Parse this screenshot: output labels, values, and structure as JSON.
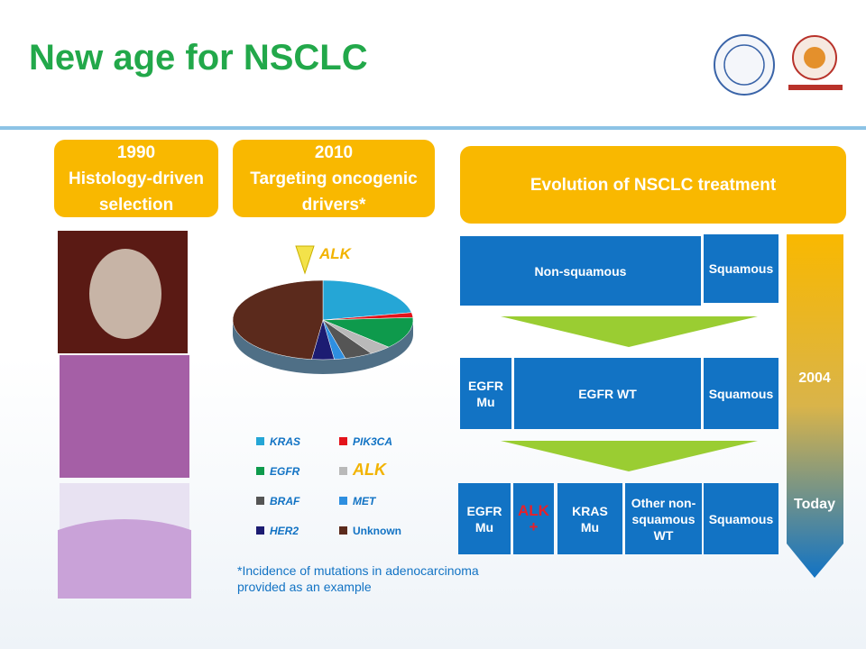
{
  "header": {
    "title": "New age for NSCLC"
  },
  "eras": [
    {
      "label": "1990\nHistology-driven\nselection"
    },
    {
      "label": "2010\nTargeting oncogenic\ndrivers*"
    }
  ],
  "evolution": {
    "title": "Evolution of NSCLC treatment",
    "rows": [
      [
        "Non-squamous",
        "Squamous"
      ],
      [
        "EGFR\nMu",
        "EGFR WT",
        "Squamous"
      ],
      [
        "EGFR\nMu",
        "ALK\n+",
        "KRAS\nMu",
        "Other non-\nsquamous\nWT",
        "Squamous"
      ]
    ],
    "timeline": [
      "2004",
      "Today"
    ]
  },
  "chart_data": {
    "type": "pie",
    "callout": "ALK",
    "categories": [
      "KRAS",
      "PIK3CA",
      "EGFR",
      "ALK",
      "BRAF",
      "MET",
      "HER2",
      "Unknown"
    ],
    "values": [
      22,
      2,
      13,
      4,
      5,
      2,
      4,
      48
    ],
    "colors": [
      "#25a6d6",
      "#e3131b",
      "#0e9a4c",
      "#b9b9b9",
      "#555555",
      "#2e8fe0",
      "#1c1c72",
      "#5b2a1c"
    ]
  },
  "footnote": "*Incidence of mutations in adenocarcinoma\nprovided as an example"
}
